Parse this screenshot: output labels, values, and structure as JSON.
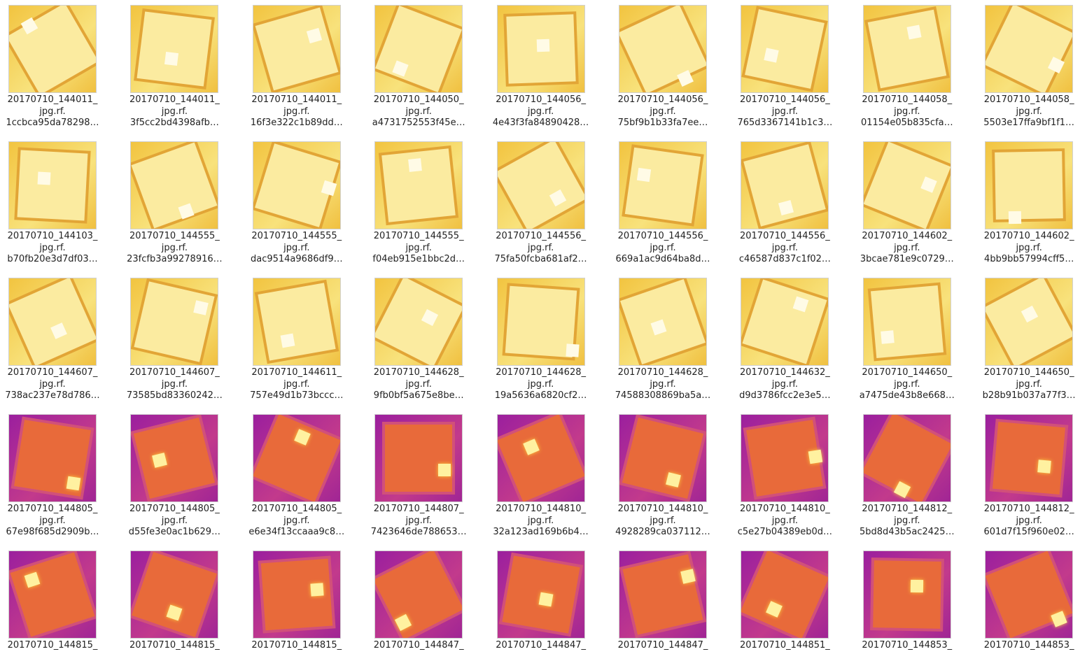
{
  "files": [
    {
      "lines": [
        "20170710_144011_",
        "jpg.rf.",
        "1ccbca95da78298…"
      ]
    },
    {
      "lines": [
        "20170710_144011_",
        "jpg.rf.",
        "3f5cc2bd4398afb…"
      ]
    },
    {
      "lines": [
        "20170710_144011_",
        "jpg.rf.",
        "16f3e322c1b89dd…"
      ]
    },
    {
      "lines": [
        "20170710_144050_",
        "jpg.rf.",
        "a4731752553f45e…"
      ]
    },
    {
      "lines": [
        "20170710_144056_",
        "jpg.rf.",
        "4e43f3fa84890428…"
      ]
    },
    {
      "lines": [
        "20170710_144056_",
        "jpg.rf.",
        "75bf9b1b33fa7ee…"
      ]
    },
    {
      "lines": [
        "20170710_144056_",
        "jpg.rf.",
        "765d3367141b1c3…"
      ]
    },
    {
      "lines": [
        "20170710_144058_",
        "jpg.rf.",
        "01154e05b835cfa…"
      ]
    },
    {
      "lines": [
        "20170710_144058_",
        "jpg.rf.",
        "5503e17ffa9bf1f1…"
      ]
    },
    {
      "lines": [
        "20170710_144103_",
        "jpg.rf.",
        "b70fb20e3d7df03…"
      ]
    },
    {
      "lines": [
        "20170710_144555_",
        "jpg.rf.",
        "23fcfb3a99278916…"
      ]
    },
    {
      "lines": [
        "20170710_144555_",
        "jpg.rf.",
        "dac9514a9686df9…"
      ]
    },
    {
      "lines": [
        "20170710_144555_",
        "jpg.rf.",
        "f04eb915e1bbc2d…"
      ]
    },
    {
      "lines": [
        "20170710_144556_",
        "jpg.rf.",
        "75fa50fcba681af2…"
      ]
    },
    {
      "lines": [
        "20170710_144556_",
        "jpg.rf.",
        "669a1ac9d64ba8d…"
      ]
    },
    {
      "lines": [
        "20170710_144556_",
        "jpg.rf.",
        "c46587d837c1f02…"
      ]
    },
    {
      "lines": [
        "20170710_144602_",
        "jpg.rf.",
        "3bcae781e9c0729…"
      ]
    },
    {
      "lines": [
        "20170710_144602_",
        "jpg.rf.",
        "4bb9bb57994cff5…"
      ]
    },
    {
      "lines": [
        "20170710_144607_",
        "jpg.rf.",
        "738ac237e78d786…"
      ]
    },
    {
      "lines": [
        "20170710_144607_",
        "jpg.rf.",
        "73585bd83360242…"
      ]
    },
    {
      "lines": [
        "20170710_144611_",
        "jpg.rf.",
        "757e49d1b73bccc…"
      ]
    },
    {
      "lines": [
        "20170710_144628_",
        "jpg.rf.",
        "9fb0bf5a675e8be…"
      ]
    },
    {
      "lines": [
        "20170710_144628_",
        "jpg.rf.",
        "19a5636a6820cf2…"
      ]
    },
    {
      "lines": [
        "20170710_144628_",
        "jpg.rf.",
        "74588308869ba5a…"
      ]
    },
    {
      "lines": [
        "20170710_144632_",
        "jpg.rf.",
        "d9d3786fcc2e3e5…"
      ]
    },
    {
      "lines": [
        "20170710_144650_",
        "jpg.rf.",
        "a7475de43b8e668…"
      ]
    },
    {
      "lines": [
        "20170710_144650_",
        "jpg.rf.",
        "b28b91b037a77f3…"
      ]
    },
    {
      "lines": [
        "20170710_144805_",
        "jpg.rf.",
        "67e98f685d2909b…"
      ]
    },
    {
      "lines": [
        "20170710_144805_",
        "jpg.rf.",
        "d55fe3e0ac1b629…"
      ]
    },
    {
      "lines": [
        "20170710_144805_",
        "jpg.rf.",
        "e6e34f13ccaaa9c8…"
      ]
    },
    {
      "lines": [
        "20170710_144807_",
        "jpg.rf.",
        "7423646de788653…"
      ]
    },
    {
      "lines": [
        "20170710_144810_",
        "jpg.rf.",
        "32a123ad169b6b4…"
      ]
    },
    {
      "lines": [
        "20170710_144810_",
        "jpg.rf.",
        "4928289ca037112…"
      ]
    },
    {
      "lines": [
        "20170710_144810_",
        "jpg.rf.",
        "c5e27b04389eb0d…"
      ]
    },
    {
      "lines": [
        "20170710_144812_",
        "jpg.rf.",
        "5bd8d43b5ac2425…"
      ]
    },
    {
      "lines": [
        "20170710_144812_",
        "jpg.rf.",
        "601d7f15f960e02…"
      ]
    },
    {
      "lines": [
        "20170710_144815_"
      ]
    },
    {
      "lines": [
        "20170710_144815_"
      ]
    },
    {
      "lines": [
        "20170710_144815_"
      ]
    },
    {
      "lines": [
        "20170710_144847_"
      ]
    },
    {
      "lines": [
        "20170710_144847_"
      ]
    },
    {
      "lines": [
        "20170710_144847_"
      ]
    },
    {
      "lines": [
        "20170710_144851_"
      ]
    },
    {
      "lines": [
        "20170710_144853_"
      ]
    },
    {
      "lines": [
        "20170710_144853_"
      ]
    }
  ]
}
